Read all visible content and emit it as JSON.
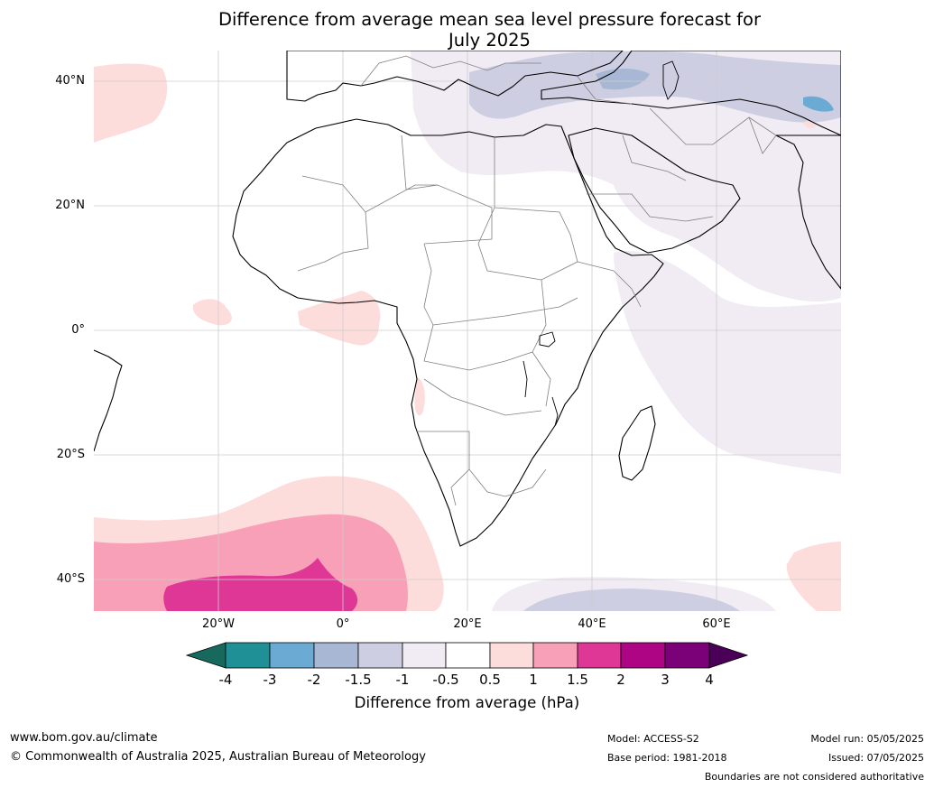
{
  "title": {
    "line1": "Difference from average mean sea level pressure forecast for",
    "line2": "July 2025"
  },
  "map": {
    "lat_labels": [
      "40°N",
      "20°N",
      "0°",
      "20°S",
      "40°S"
    ],
    "lon_labels": [
      "20°W",
      "0°",
      "20°E",
      "40°E",
      "60°E"
    ],
    "land_color": "#ffffff",
    "coastline_color": "#000000",
    "border_color": "#808080",
    "gridline_color": "#cccccc"
  },
  "colorbar": {
    "ticks": [
      "-4",
      "-3",
      "-2",
      "-1.5",
      "-1",
      "-0.5",
      "0.5",
      "1",
      "1.5",
      "2",
      "3",
      "4"
    ],
    "colors": [
      "#17695e",
      "#1f9196",
      "#6aaad3",
      "#a8b8d4",
      "#ceceE3",
      "#f1ecf4",
      "#ffffff",
      "#fddcdc",
      "#f8a0b7",
      "#de3796",
      "#ae0585",
      "#7a0177",
      "#4b0058"
    ],
    "label": "Difference from average (hPa)"
  },
  "footer": {
    "website": "www.bom.gov.au/climate",
    "copyright": "© Commonwealth of Australia 2025, Australian Bureau of Meteorology",
    "model": "Model: ACCESS-S2",
    "base_period": "Base period: 1981-2018",
    "model_run": "Model run: 05/05/2025",
    "issued": "Issued: 07/05/2025",
    "disclaimer": "Boundaries are not considered authoritative"
  }
}
